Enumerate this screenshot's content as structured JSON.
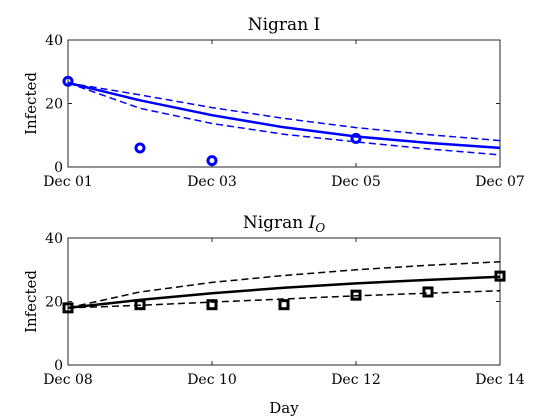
{
  "chart_data": [
    {
      "type": "line",
      "title": "Nigran I",
      "xlabel": "",
      "ylabel": "Infected",
      "ylim": [
        0,
        40
      ],
      "yticks": [
        0,
        20,
        40
      ],
      "xlim": [
        "2023-12-01",
        "2023-12-07"
      ],
      "xticks": [
        "Dec 01",
        "Dec 03",
        "Dec 05",
        "Dec 07"
      ],
      "color": "#0000ff",
      "grid": false,
      "legend": "none",
      "fit": {
        "x": [
          "2023-12-01",
          "2023-12-02",
          "2023-12-03",
          "2023-12-04",
          "2023-12-05",
          "2023-12-06",
          "2023-12-07"
        ],
        "values": [
          26.5,
          21.0,
          16.3,
          12.5,
          9.6,
          7.6,
          6.0
        ]
      },
      "fit_upper": {
        "x": [
          "2023-12-01",
          "2023-12-02",
          "2023-12-03",
          "2023-12-04",
          "2023-12-05",
          "2023-12-06",
          "2023-12-07"
        ],
        "values": [
          26.5,
          22.7,
          18.7,
          15.3,
          12.4,
          10.2,
          8.3
        ]
      },
      "fit_lower": {
        "x": [
          "2023-12-01",
          "2023-12-02",
          "2023-12-03",
          "2023-12-04",
          "2023-12-05",
          "2023-12-06",
          "2023-12-07"
        ],
        "values": [
          26.5,
          18.5,
          13.7,
          10.3,
          7.9,
          5.7,
          3.8
        ]
      },
      "observed": {
        "x": [
          "2023-12-01",
          "2023-12-02",
          "2023-12-03",
          "2023-12-05"
        ],
        "values": [
          27,
          6,
          2,
          9
        ]
      }
    },
    {
      "type": "line",
      "title": "Nigran I_O",
      "xlabel": "Day",
      "ylabel": "Infected",
      "ylim": [
        0,
        40
      ],
      "yticks": [
        0,
        20,
        40
      ],
      "xlim": [
        "2023-12-08",
        "2023-12-14"
      ],
      "xticks": [
        "Dec 08",
        "Dec 10",
        "Dec 12",
        "Dec 14"
      ],
      "color": "#000000",
      "grid": false,
      "legend": "none",
      "fit": {
        "x": [
          "2023-12-08",
          "2023-12-09",
          "2023-12-10",
          "2023-12-11",
          "2023-12-12",
          "2023-12-13",
          "2023-12-14"
        ],
        "values": [
          18.0,
          20.5,
          22.6,
          24.3,
          25.7,
          26.8,
          27.8
        ]
      },
      "fit_upper": {
        "x": [
          "2023-12-08",
          "2023-12-09",
          "2023-12-10",
          "2023-12-11",
          "2023-12-12",
          "2023-12-13",
          "2023-12-14"
        ],
        "values": [
          18.0,
          23.0,
          26.0,
          28.2,
          30.0,
          31.4,
          32.5
        ]
      },
      "fit_lower": {
        "x": [
          "2023-12-08",
          "2023-12-09",
          "2023-12-10",
          "2023-12-11",
          "2023-12-12",
          "2023-12-13",
          "2023-12-14"
        ],
        "values": [
          18.0,
          18.8,
          19.8,
          20.8,
          21.8,
          22.6,
          23.4
        ]
      },
      "observed": {
        "x": [
          "2023-12-08",
          "2023-12-09",
          "2023-12-10",
          "2023-12-11",
          "2023-12-12",
          "2023-12-13",
          "2023-12-14"
        ],
        "values": [
          18,
          19,
          19,
          19,
          22,
          23,
          28
        ]
      }
    }
  ]
}
